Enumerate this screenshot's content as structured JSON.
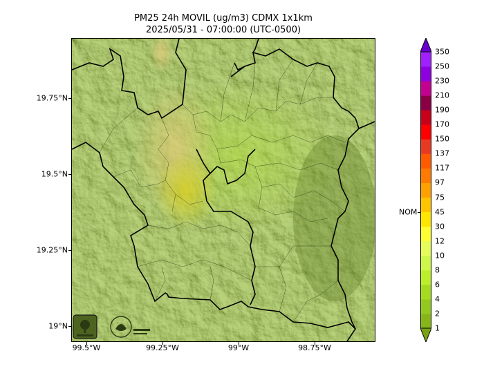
{
  "figure": {
    "title": "PM25 24h MOVIL (ug/m3) CDMX 1x1km",
    "subtitle": "2025/05/31 - 07:00:00 (UTC-0500)"
  },
  "map": {
    "lat_ticks": [
      {
        "label": "19.75°N",
        "value": 19.75
      },
      {
        "label": "19.5°N",
        "value": 19.5
      },
      {
        "label": "19.25°N",
        "value": 19.25
      },
      {
        "label": "19°N",
        "value": 19.0
      }
    ],
    "lon_ticks": [
      {
        "label": "99.5°W",
        "value": -99.5
      },
      {
        "label": "99.25°W",
        "value": -99.25
      },
      {
        "label": "99°W",
        "value": -99.0
      },
      {
        "label": "98.75°W",
        "value": -98.75
      }
    ],
    "lat_range": [
      18.95,
      19.95
    ],
    "lon_range": [
      -99.55,
      -98.55
    ],
    "terrain_color": "#8aa838",
    "logos": [
      "sedema-logo",
      "ciudad-de-mexico-logo"
    ]
  },
  "colorbar": {
    "labels": [
      "1",
      "2",
      "4",
      "6",
      "8",
      "10",
      "12",
      "30",
      "45",
      "75",
      "97",
      "117",
      "137",
      "150",
      "170",
      "190",
      "210",
      "230",
      "250",
      "350"
    ],
    "colors": [
      "#7aa312",
      "#86b51a",
      "#93c91e",
      "#a6dc1f",
      "#baef2a",
      "#cdf84a",
      "#e6fc5a",
      "#ffff33",
      "#ffe600",
      "#ffc400",
      "#ff9f00",
      "#ff7a00",
      "#ff5a00",
      "#e83a22",
      "#ff0000",
      "#c8001a",
      "#8b0045",
      "#c40090",
      "#8f00e0",
      "#a020ff",
      "#6a00d0"
    ],
    "reference_label": "NOM",
    "reference_value": "45"
  }
}
